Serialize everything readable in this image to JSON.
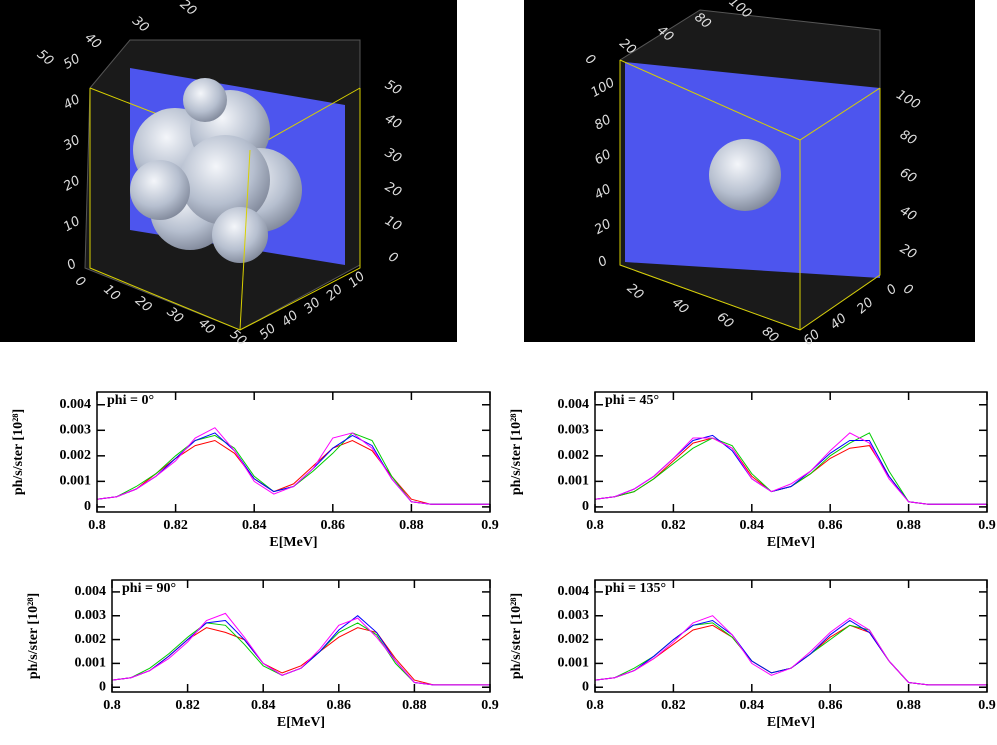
{
  "renders": [
    {
      "axes": [
        {
          "labels": [
            "0",
            "10",
            "20",
            "30",
            "40",
            "50"
          ]
        },
        {
          "labels": [
            "0",
            "10",
            "20",
            "30",
            "40",
            "50"
          ]
        },
        {
          "labels": [
            "0",
            "10",
            "20",
            "30",
            "40",
            "50"
          ]
        },
        {
          "labels": [
            "10",
            "20",
            "30",
            "40",
            "50"
          ]
        },
        {
          "labels": [
            "50",
            "40",
            "30",
            "20"
          ]
        }
      ]
    },
    {
      "axes": [
        {
          "labels": [
            "0",
            "20",
            "40",
            "60",
            "80",
            "100"
          ]
        },
        {
          "labels": [
            "0",
            "20",
            "40",
            "60",
            "80",
            "100"
          ]
        },
        {
          "labels": [
            "20",
            "40",
            "60",
            "80"
          ]
        },
        {
          "labels": [
            "0",
            "20",
            "40",
            "60"
          ]
        },
        {
          "labels": [
            "0",
            "20",
            "40",
            "80",
            "100"
          ]
        }
      ]
    }
  ],
  "chart_data": [
    {
      "type": "line",
      "annotation": "phi = 0°",
      "xlabel": "E[MeV]",
      "ylabel": "ph/s/ster [10²⁸]",
      "x": [
        0.8,
        0.805,
        0.81,
        0.815,
        0.82,
        0.825,
        0.83,
        0.835,
        0.84,
        0.845,
        0.85,
        0.855,
        0.86,
        0.865,
        0.87,
        0.875,
        0.88,
        0.885,
        0.89,
        0.895,
        0.9
      ],
      "xlim": [
        0.8,
        0.9
      ],
      "ylim": [
        -0.0002,
        0.0045
      ],
      "xticks": [
        0.8,
        0.82,
        0.84,
        0.86,
        0.88,
        0.9
      ],
      "yticks": [
        0,
        0.001,
        0.002,
        0.003,
        0.004
      ],
      "series": [
        {
          "color": "#ff0000",
          "values": [
            0.0003,
            0.0004,
            0.0007,
            0.0013,
            0.0019,
            0.0024,
            0.0026,
            0.0021,
            0.0011,
            0.0006,
            0.0009,
            0.0016,
            0.0023,
            0.0026,
            0.0022,
            0.0012,
            0.0003,
            0.0001,
            0.0001,
            0.0001,
            0.0001
          ]
        },
        {
          "color": "#00cc00",
          "values": [
            0.0003,
            0.0004,
            0.0008,
            0.0013,
            0.002,
            0.0026,
            0.0028,
            0.0023,
            0.0012,
            0.0006,
            0.0008,
            0.0014,
            0.0021,
            0.0029,
            0.0026,
            0.0012,
            0.0002,
            0.0001,
            0.0001,
            0.0001,
            0.0001
          ]
        },
        {
          "color": "#0000ff",
          "values": [
            0.0003,
            0.0004,
            0.0007,
            0.0012,
            0.0019,
            0.0026,
            0.0029,
            0.0022,
            0.0011,
            0.0006,
            0.0008,
            0.0015,
            0.0023,
            0.0028,
            0.0024,
            0.0011,
            0.0002,
            0.0001,
            0.0001,
            0.0001,
            0.0001
          ]
        },
        {
          "color": "#ff00ff",
          "values": [
            0.0003,
            0.0004,
            0.0007,
            0.0012,
            0.0018,
            0.0027,
            0.0031,
            0.0022,
            0.001,
            0.0005,
            0.0008,
            0.0015,
            0.0027,
            0.0029,
            0.0023,
            0.0011,
            0.0002,
            0.0001,
            0.0001,
            0.0001,
            0.0001
          ]
        }
      ]
    },
    {
      "type": "line",
      "annotation": "phi = 45°",
      "xlabel": "E[MeV]",
      "ylabel": "ph/s/ster [10²⁸]",
      "x": [
        0.8,
        0.805,
        0.81,
        0.815,
        0.82,
        0.825,
        0.83,
        0.835,
        0.84,
        0.845,
        0.85,
        0.855,
        0.86,
        0.865,
        0.87,
        0.875,
        0.88,
        0.885,
        0.89,
        0.895,
        0.9
      ],
      "xlim": [
        0.8,
        0.9
      ],
      "ylim": [
        -0.0002,
        0.0045
      ],
      "xticks": [
        0.8,
        0.82,
        0.84,
        0.86,
        0.88,
        0.9
      ],
      "yticks": [
        0,
        0.001,
        0.002,
        0.003,
        0.004
      ],
      "series": [
        {
          "color": "#ff0000",
          "values": [
            0.0003,
            0.0004,
            0.0006,
            0.0011,
            0.0018,
            0.0025,
            0.0027,
            0.0023,
            0.0012,
            0.0006,
            0.0008,
            0.0013,
            0.0019,
            0.0023,
            0.0024,
            0.0012,
            0.0002,
            0.0001,
            0.0001,
            0.0001,
            0.0001
          ]
        },
        {
          "color": "#00cc00",
          "values": [
            0.0003,
            0.0004,
            0.0006,
            0.0011,
            0.0017,
            0.0023,
            0.0027,
            0.0024,
            0.0013,
            0.0006,
            0.0008,
            0.0013,
            0.002,
            0.0025,
            0.0029,
            0.0014,
            0.0002,
            0.0001,
            0.0001,
            0.0001,
            0.0001
          ]
        },
        {
          "color": "#0000ff",
          "values": [
            0.0003,
            0.0004,
            0.0007,
            0.0012,
            0.0019,
            0.0026,
            0.0028,
            0.0022,
            0.0011,
            0.0006,
            0.0008,
            0.0014,
            0.0021,
            0.0026,
            0.0026,
            0.0012,
            0.0002,
            0.0001,
            0.0001,
            0.0001,
            0.0001
          ]
        },
        {
          "color": "#ff00ff",
          "values": [
            0.0003,
            0.0004,
            0.0007,
            0.0012,
            0.0019,
            0.0027,
            0.0027,
            0.0023,
            0.0011,
            0.0006,
            0.0009,
            0.0014,
            0.0022,
            0.0029,
            0.0025,
            0.0011,
            0.0002,
            0.0001,
            0.0001,
            0.0001,
            0.0001
          ]
        }
      ]
    },
    {
      "type": "line",
      "annotation": "phi = 90°",
      "xlabel": "E[MeV]",
      "ylabel": "ph/s/ster [10²⁸]",
      "x": [
        0.8,
        0.805,
        0.81,
        0.815,
        0.82,
        0.825,
        0.83,
        0.835,
        0.84,
        0.845,
        0.85,
        0.855,
        0.86,
        0.865,
        0.87,
        0.875,
        0.88,
        0.885,
        0.89,
        0.895,
        0.9
      ],
      "xlim": [
        0.8,
        0.9
      ],
      "ylim": [
        -0.0002,
        0.0045
      ],
      "xticks": [
        0.8,
        0.82,
        0.84,
        0.86,
        0.88,
        0.9
      ],
      "yticks": [
        0,
        0.001,
        0.002,
        0.003,
        0.004
      ],
      "series": [
        {
          "color": "#ff0000",
          "values": [
            0.0003,
            0.0004,
            0.0007,
            0.0013,
            0.002,
            0.0025,
            0.0023,
            0.002,
            0.001,
            0.0006,
            0.0009,
            0.0015,
            0.0021,
            0.0025,
            0.0023,
            0.0012,
            0.0003,
            0.0001,
            0.0001,
            0.0001,
            0.0001
          ]
        },
        {
          "color": "#00cc00",
          "values": [
            0.0003,
            0.0004,
            0.0008,
            0.0014,
            0.0021,
            0.0027,
            0.0026,
            0.0018,
            0.0009,
            0.0005,
            0.0008,
            0.0015,
            0.0023,
            0.0027,
            0.0022,
            0.001,
            0.0002,
            0.0001,
            0.0001,
            0.0001,
            0.0001
          ]
        },
        {
          "color": "#0000ff",
          "values": [
            0.0003,
            0.0004,
            0.0007,
            0.0013,
            0.002,
            0.0027,
            0.0028,
            0.002,
            0.001,
            0.0005,
            0.0008,
            0.0015,
            0.0024,
            0.003,
            0.0023,
            0.0011,
            0.0002,
            0.0001,
            0.0001,
            0.0001,
            0.0001
          ]
        },
        {
          "color": "#ff00ff",
          "values": [
            0.0003,
            0.0004,
            0.0007,
            0.0012,
            0.0019,
            0.0028,
            0.0031,
            0.0021,
            0.001,
            0.0005,
            0.0008,
            0.0016,
            0.0026,
            0.0029,
            0.0021,
            0.0011,
            0.0002,
            0.0001,
            0.0001,
            0.0001,
            0.0001
          ]
        }
      ]
    },
    {
      "type": "line",
      "annotation": "phi = 135°",
      "xlabel": "E[MeV]",
      "ylabel": "ph/s/ster [10²⁸]",
      "x": [
        0.8,
        0.805,
        0.81,
        0.815,
        0.82,
        0.825,
        0.83,
        0.835,
        0.84,
        0.845,
        0.85,
        0.855,
        0.86,
        0.865,
        0.87,
        0.875,
        0.88,
        0.885,
        0.89,
        0.895,
        0.9
      ],
      "xlim": [
        0.8,
        0.9
      ],
      "ylim": [
        -0.0002,
        0.0045
      ],
      "xticks": [
        0.8,
        0.82,
        0.84,
        0.86,
        0.88,
        0.9
      ],
      "yticks": [
        0,
        0.001,
        0.002,
        0.003,
        0.004
      ],
      "series": [
        {
          "color": "#ff0000",
          "values": [
            0.0003,
            0.0004,
            0.0007,
            0.0012,
            0.0018,
            0.0024,
            0.0026,
            0.0021,
            0.0011,
            0.0006,
            0.0008,
            0.0014,
            0.0021,
            0.0026,
            0.0023,
            0.0011,
            0.0002,
            0.0001,
            0.0001,
            0.0001,
            0.0001
          ]
        },
        {
          "color": "#00cc00",
          "values": [
            0.0003,
            0.0004,
            0.0008,
            0.0013,
            0.002,
            0.0026,
            0.0027,
            0.0021,
            0.0011,
            0.0006,
            0.0008,
            0.0014,
            0.002,
            0.0026,
            0.0024,
            0.0011,
            0.0002,
            0.0001,
            0.0001,
            0.0001,
            0.0001
          ]
        },
        {
          "color": "#0000ff",
          "values": [
            0.0003,
            0.0004,
            0.0007,
            0.0013,
            0.002,
            0.0026,
            0.0028,
            0.0022,
            0.0011,
            0.0006,
            0.0008,
            0.0014,
            0.0022,
            0.0028,
            0.0023,
            0.0011,
            0.0002,
            0.0001,
            0.0001,
            0.0001,
            0.0001
          ]
        },
        {
          "color": "#ff00ff",
          "values": [
            0.0003,
            0.0004,
            0.0007,
            0.0012,
            0.0019,
            0.0027,
            0.003,
            0.0022,
            0.001,
            0.0005,
            0.0008,
            0.0015,
            0.0023,
            0.0029,
            0.0024,
            0.0011,
            0.0002,
            0.0001,
            0.0001,
            0.0001,
            0.0001
          ]
        }
      ]
    }
  ]
}
